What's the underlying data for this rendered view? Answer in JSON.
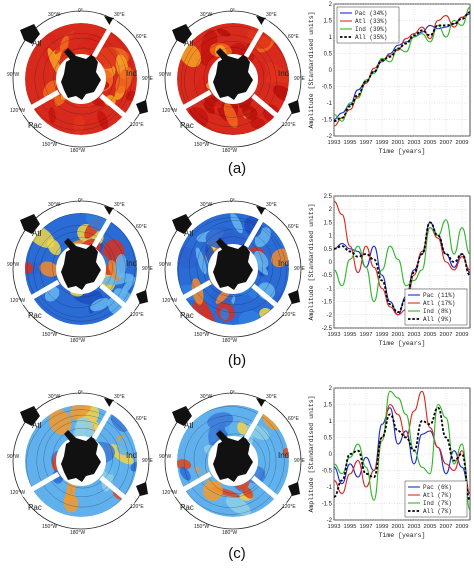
{
  "map_labels": {
    "atl": "Atl",
    "ind": "Ind",
    "pac": "Pac",
    "lon_0": "0°",
    "lon_30w": "30°W",
    "lon_30e": "30°E",
    "lon_60e": "60°E",
    "lon_90e": "90°E",
    "lon_90w": "90°W",
    "lon_120w": "120°W",
    "lon_120e": "120°E",
    "lon_150w": "150°W",
    "lon_180": "180°W",
    "lon_150e": "150°E"
  },
  "panels": [
    {
      "label": "(a)",
      "map_style": "warm-trend"
    },
    {
      "label": "(b)",
      "map_style": "mixed-blue"
    },
    {
      "label": "(c)",
      "map_style": "patchy"
    }
  ],
  "colors": {
    "pac": "#1a2bd6",
    "atl": "#d82a1c",
    "ind": "#2fb82a",
    "all": "#000000"
  },
  "chart_data": [
    {
      "type": "line",
      "ylabel": "Amplitude [Standardised units]",
      "xlabel": "Time [years]",
      "ylim": [
        -2,
        2
      ],
      "xlim": [
        1993,
        2010
      ],
      "yticks": [
        -2,
        -1.5,
        -1,
        -0.5,
        0,
        0.5,
        1,
        1.5,
        2
      ],
      "xticks": [
        1993,
        1995,
        1997,
        1999,
        2001,
        2003,
        2005,
        2007,
        2009
      ],
      "legend_position": "top-left",
      "series": [
        {
          "name": "Pac (34%)",
          "key": "pac",
          "x": [
            1993,
            1994,
            1995,
            1996,
            1997,
            1998,
            1999,
            2000,
            2001,
            2002,
            2003,
            2004,
            2005,
            2006,
            2007,
            2008,
            2009,
            2010
          ],
          "values": [
            -1.5,
            -1.3,
            -1.05,
            -0.6,
            -0.35,
            -0.05,
            0.25,
            0.5,
            0.75,
            0.85,
            1.0,
            1.15,
            1.35,
            1.25,
            1.3,
            1.4,
            1.6,
            1.7
          ]
        },
        {
          "name": "Atl (33%)",
          "key": "atl",
          "x": [
            1993,
            1994,
            1995,
            1996,
            1997,
            1998,
            1999,
            2000,
            2001,
            2002,
            2003,
            2004,
            2005,
            2006,
            2007,
            2008,
            2009,
            2010
          ],
          "values": [
            -1.7,
            -1.45,
            -1.2,
            -0.8,
            -0.4,
            0.05,
            0.3,
            0.45,
            0.6,
            0.95,
            1.1,
            1.3,
            0.95,
            1.5,
            1.65,
            1.3,
            1.6,
            1.75
          ]
        },
        {
          "name": "Ind (39%)",
          "key": "ind",
          "x": [
            1993,
            1994,
            1995,
            1996,
            1997,
            1998,
            1999,
            2000,
            2001,
            2002,
            2003,
            2004,
            2005,
            2006,
            2007,
            2008,
            2009,
            2010
          ],
          "values": [
            -1.35,
            -1.55,
            -1.0,
            -0.85,
            -0.3,
            -0.1,
            0.35,
            0.25,
            0.65,
            0.55,
            1.0,
            1.1,
            0.85,
            1.35,
            1.0,
            1.5,
            1.35,
            1.9
          ]
        },
        {
          "name": "All (35%)",
          "key": "all",
          "x": [
            1993,
            1994,
            1995,
            1996,
            1997,
            1998,
            1999,
            2000,
            2001,
            2002,
            2003,
            2004,
            2005,
            2006,
            2007,
            2008,
            2009,
            2010
          ],
          "values": [
            -1.55,
            -1.45,
            -1.1,
            -0.75,
            -0.35,
            -0.05,
            0.3,
            0.4,
            0.65,
            0.8,
            1.05,
            1.2,
            1.05,
            1.35,
            1.35,
            1.4,
            1.55,
            1.75
          ]
        }
      ]
    },
    {
      "type": "line",
      "ylabel": "Amplitude [Standardised units]",
      "xlabel": "Time [years]",
      "ylim": [
        -2.5,
        2.5
      ],
      "xlim": [
        1993,
        2010
      ],
      "yticks": [
        -2.5,
        -2,
        -1.5,
        -1,
        -0.5,
        0,
        0.5,
        1,
        1.5,
        2,
        2.5
      ],
      "xticks": [
        1993,
        1995,
        1997,
        1999,
        2001,
        2003,
        2005,
        2007,
        2009
      ],
      "legend_position": "bottom-right",
      "series": [
        {
          "name": "Pac (11%)",
          "key": "pac",
          "x": [
            1993,
            1994,
            1995,
            1996,
            1997,
            1998,
            1999,
            2000,
            2001,
            2002,
            2003,
            2004,
            2005,
            2006,
            2007,
            2008,
            2009,
            2010
          ],
          "values": [
            0.5,
            0.7,
            0.5,
            0.4,
            -0.2,
            0.6,
            -0.5,
            -1.5,
            -2.0,
            -1.3,
            -0.3,
            0.3,
            1.5,
            1.0,
            0.3,
            -0.2,
            0.3,
            -0.4
          ]
        },
        {
          "name": "Atl (17%)",
          "key": "atl",
          "x": [
            1993,
            1994,
            1995,
            1996,
            1997,
            1998,
            1999,
            2000,
            2001,
            2002,
            2003,
            2004,
            2005,
            2006,
            2007,
            2008,
            2009,
            2010
          ],
          "values": [
            2.3,
            1.8,
            0.6,
            -0.4,
            0.6,
            -0.2,
            -1.0,
            -1.7,
            -2.0,
            -1.8,
            -0.5,
            0.4,
            1.3,
            0.9,
            0.0,
            -0.3,
            0.2,
            -0.3
          ]
        },
        {
          "name": "Ind (8%)",
          "key": "ind",
          "x": [
            1993,
            1994,
            1995,
            1996,
            1997,
            1998,
            1999,
            2000,
            2001,
            2002,
            2003,
            2004,
            2005,
            2006,
            2007,
            2008,
            2009,
            2010
          ],
          "values": [
            -0.3,
            -0.9,
            0.1,
            0.6,
            -0.2,
            -1.5,
            -0.3,
            0.6,
            0.1,
            -0.9,
            -0.7,
            -0.3,
            1.3,
            1.0,
            1.6,
            0.3,
            1.3,
            0.3
          ]
        },
        {
          "name": "All (9%)",
          "key": "all",
          "x": [
            1993,
            1994,
            1995,
            1996,
            1997,
            1998,
            1999,
            2000,
            2001,
            2002,
            2003,
            2004,
            2005,
            2006,
            2007,
            2008,
            2009,
            2010
          ],
          "values": [
            0.5,
            0.6,
            0.4,
            0.2,
            0.3,
            0.1,
            -0.7,
            -1.6,
            -1.9,
            -1.4,
            -0.4,
            0.3,
            1.5,
            1.0,
            0.3,
            0.0,
            0.3,
            -0.5
          ]
        }
      ]
    },
    {
      "type": "line",
      "ylabel": "Amplitude [Standardised units]",
      "xlabel": "Time [years]",
      "ylim": [
        -2,
        2
      ],
      "xlim": [
        1993,
        2010
      ],
      "yticks": [
        -2,
        -1.5,
        -1,
        -0.5,
        0,
        0.5,
        1,
        1.5,
        2
      ],
      "xticks": [
        1993,
        1995,
        1997,
        1999,
        2001,
        2003,
        2005,
        2007,
        2009
      ],
      "legend_position": "bottom-right",
      "series": [
        {
          "name": "Pac (6%)",
          "key": "pac",
          "x": [
            1993,
            1994,
            1995,
            1996,
            1997,
            1998,
            1999,
            2000,
            2001,
            2002,
            2003,
            2004,
            2005,
            2006,
            2007,
            2008,
            2009,
            2010
          ],
          "values": [
            -0.4,
            -0.9,
            -0.3,
            -0.7,
            -0.1,
            -0.5,
            0.9,
            1.4,
            0.3,
            0.7,
            -0.3,
            0.6,
            0.7,
            0.2,
            -0.6,
            0.1,
            -0.4,
            -1.2
          ]
        },
        {
          "name": "Atl (7%)",
          "key": "atl",
          "x": [
            1993,
            1994,
            1995,
            1996,
            1997,
            1998,
            1999,
            2000,
            2001,
            2002,
            2003,
            2004,
            2005,
            2006,
            2007,
            2008,
            2009,
            2010
          ],
          "values": [
            -0.8,
            -1.2,
            -0.6,
            -0.2,
            -1.0,
            -0.5,
            0.5,
            1.5,
            1.2,
            0.5,
            1.3,
            1.9,
            0.8,
            0.2,
            -0.3,
            -0.5,
            0.1,
            -1.2
          ]
        },
        {
          "name": "Ind (7%)",
          "key": "ind",
          "x": [
            1993,
            1994,
            1995,
            1996,
            1997,
            1998,
            1999,
            2000,
            2001,
            2002,
            2003,
            2004,
            2005,
            2006,
            2007,
            2008,
            2009,
            2010
          ],
          "values": [
            -0.3,
            -0.6,
            -0.1,
            0.3,
            -0.4,
            -1.4,
            0.4,
            1.9,
            1.7,
            1.2,
            0.1,
            -0.4,
            -0.6,
            1.5,
            1.1,
            -0.3,
            0.3,
            -1.7
          ]
        },
        {
          "name": "All (7%)",
          "key": "all",
          "x": [
            1993,
            1994,
            1995,
            1996,
            1997,
            1998,
            1999,
            2000,
            2001,
            2002,
            2003,
            2004,
            2005,
            2006,
            2007,
            2008,
            2009,
            2010
          ],
          "values": [
            -1.3,
            -0.8,
            0.0,
            0.1,
            -0.6,
            -0.7,
            0.5,
            1.2,
            0.7,
            0.5,
            0.1,
            1.0,
            0.9,
            1.4,
            0.5,
            -0.2,
            0.0,
            -1.4
          ]
        }
      ]
    }
  ]
}
